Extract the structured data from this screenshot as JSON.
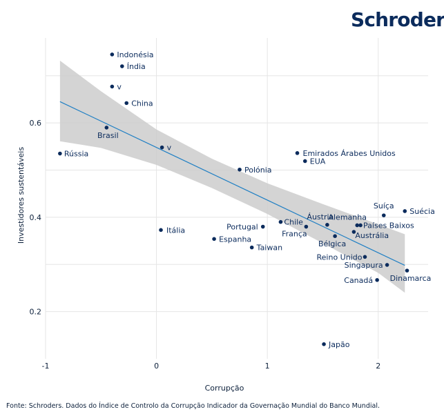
{
  "brand": {
    "logo_text": "Schroders"
  },
  "footnote": "Fonte: Schroders. Dados do Índice de Controlo da Corrupção Indicador da Governação Mundial do Banco Mundial.",
  "colors": {
    "points": "#0b2b5c",
    "fit_line": "#1f7fc4",
    "ci_band": "#cccccc",
    "grid": "#e5e5e5",
    "text": "#0b1f3a"
  },
  "chart_data": {
    "type": "scatter",
    "title": "",
    "xlabel": "Corrupção",
    "ylabel": "Investidores sustentáveis",
    "xlim": [
      -1,
      2.45
    ],
    "ylim": [
      0.1,
      0.78
    ],
    "x_ticks": [
      -1,
      0,
      1,
      2
    ],
    "x_tick_labels": [
      "-1",
      "0",
      "1",
      "2"
    ],
    "y_ticks": [
      0.2,
      0.4,
      0.6
    ],
    "y_tick_labels": [
      "0.2",
      "0.4",
      "0.6"
    ],
    "grid": true,
    "points": [
      {
        "label": "Indonésia",
        "x": -0.4,
        "y": 0.745
      },
      {
        "label": "Índia",
        "x": -0.31,
        "y": 0.72
      },
      {
        "label": "v",
        "x": -0.4,
        "y": 0.677
      },
      {
        "label": "China",
        "x": -0.27,
        "y": 0.642
      },
      {
        "label": "Brasil",
        "x": -0.45,
        "y": 0.59
      },
      {
        "label": "Rússia",
        "x": -0.87,
        "y": 0.535
      },
      {
        "label": "v",
        "x": 0.05,
        "y": 0.548
      },
      {
        "label": "Polónia",
        "x": 0.75,
        "y": 0.501
      },
      {
        "label": "Emirados Árabes Unidos",
        "x": 1.27,
        "y": 0.536
      },
      {
        "label": "EUA",
        "x": 1.34,
        "y": 0.519
      },
      {
        "label": "Itália",
        "x": 0.04,
        "y": 0.373
      },
      {
        "label": "Espanha",
        "x": 0.52,
        "y": 0.354
      },
      {
        "label": "Portugal",
        "x": 0.96,
        "y": 0.38
      },
      {
        "label": "Taiwan",
        "x": 0.86,
        "y": 0.336
      },
      {
        "label": "Chile",
        "x": 1.12,
        "y": 0.39
      },
      {
        "label": "Áustria",
        "x": 1.54,
        "y": 0.384
      },
      {
        "label": "França",
        "x": 1.35,
        "y": 0.38
      },
      {
        "label": "Alemanha",
        "x": 1.81,
        "y": 0.383
      },
      {
        "label": "Países Baixos",
        "x": 1.84,
        "y": 0.383
      },
      {
        "label": "Austrália",
        "x": 1.78,
        "y": 0.369
      },
      {
        "label": "Bélgica",
        "x": 1.61,
        "y": 0.36
      },
      {
        "label": "Suíça",
        "x": 2.05,
        "y": 0.404
      },
      {
        "label": "Suécia",
        "x": 2.24,
        "y": 0.413
      },
      {
        "label": "Reino Unido",
        "x": 1.88,
        "y": 0.316
      },
      {
        "label": "Singapura",
        "x": 2.08,
        "y": 0.299
      },
      {
        "label": "Dinamarca",
        "x": 2.26,
        "y": 0.287
      },
      {
        "label": "Canadá",
        "x": 1.99,
        "y": 0.267
      },
      {
        "label": "Japão",
        "x": 1.51,
        "y": 0.131
      }
    ],
    "fit_line": {
      "x": [
        -0.87,
        2.24
      ],
      "y": [
        0.645,
        0.298
      ]
    },
    "confidence_band": {
      "x": [
        -0.87,
        -0.5,
        0.0,
        0.5,
        1.0,
        1.5,
        2.0,
        2.24
      ],
      "upper": [
        0.732,
        0.667,
        0.586,
        0.524,
        0.472,
        0.428,
        0.385,
        0.364
      ],
      "lower": [
        0.561,
        0.547,
        0.511,
        0.462,
        0.407,
        0.345,
        0.282,
        0.24
      ]
    }
  }
}
